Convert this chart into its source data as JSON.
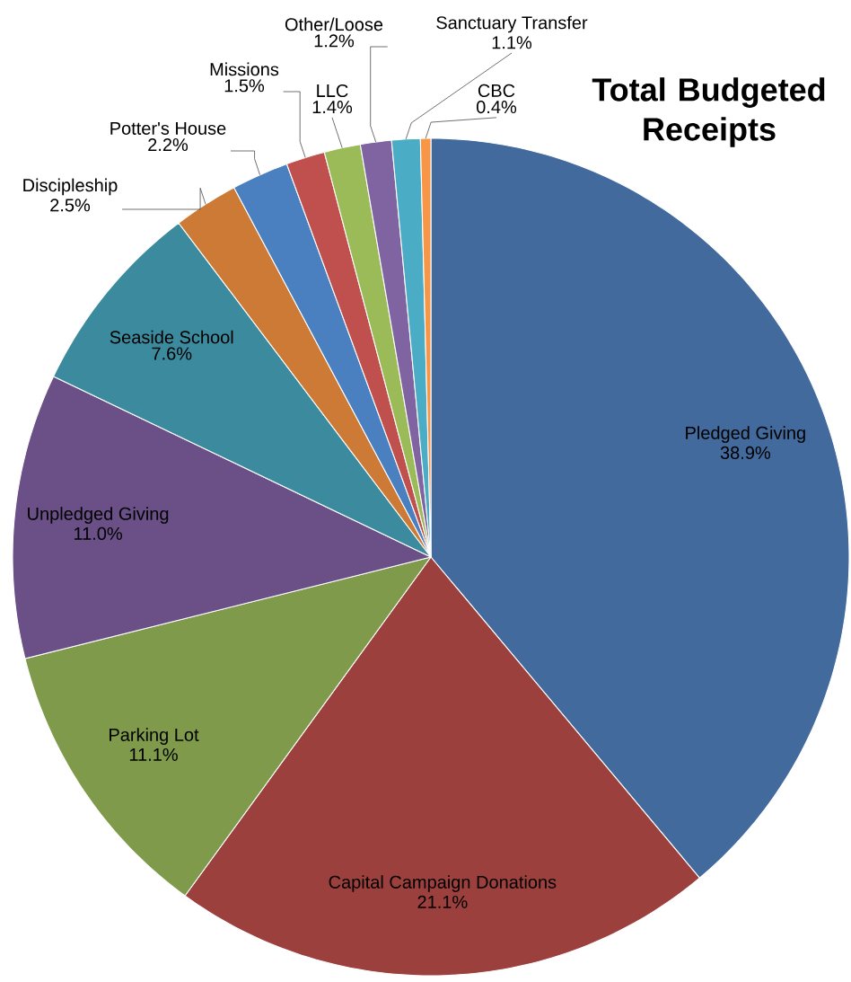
{
  "chart_data": {
    "type": "pie",
    "title": "Total Budgeted Receipts",
    "categories": [
      "Pledged Giving",
      "Capital Campaign Donations",
      "Parking Lot",
      "Unpledged Giving",
      "Seaside School",
      "Discipleship",
      "Potter's House",
      "Missions",
      "LLC",
      "Other/Loose",
      "Sanctuary Transfer",
      "CBC"
    ],
    "values": [
      38.9,
      21.1,
      11.1,
      11.0,
      7.6,
      2.5,
      2.2,
      1.5,
      1.4,
      1.2,
      1.1,
      0.4
    ],
    "colors": [
      "#426a9c",
      "#9c403e",
      "#7f9a4a",
      "#6a5087",
      "#3b8a9d",
      "#cc7a35",
      "#4a7fc0",
      "#c0504d",
      "#9bbb59",
      "#8064a2",
      "#4bacc6",
      "#f79646"
    ],
    "value_labels": [
      "38.9%",
      "21.1%",
      "11.1%",
      "11.0%",
      "7.6%",
      "2.5%",
      "2.2%",
      "1.5%",
      "1.4%",
      "1.2%",
      "1.1%",
      "0.4%"
    ]
  }
}
